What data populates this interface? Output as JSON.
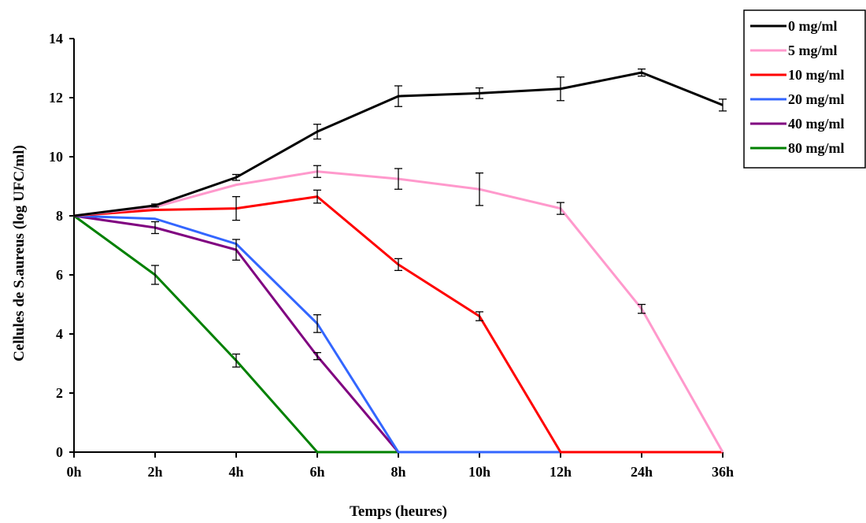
{
  "chart_data": {
    "type": "line",
    "title": "",
    "xlabel": "Temps (heures)",
    "ylabel": "Cellules de S.aureus (log UFC/ml)",
    "categories": [
      "0h",
      "2h",
      "4h",
      "6h",
      "8h",
      "10h",
      "12h",
      "24h",
      "36h"
    ],
    "ylim": [
      0,
      14
    ],
    "yticks": [
      0,
      2,
      4,
      6,
      8,
      10,
      12,
      14
    ],
    "grid": false,
    "legend_position": "top-right",
    "series": [
      {
        "name": "0 mg/ml",
        "color": "#000000",
        "values": [
          8.0,
          8.35,
          9.3,
          10.85,
          12.05,
          12.15,
          12.3,
          12.85,
          11.75
        ],
        "errors": [
          null,
          0.05,
          0.1,
          0.25,
          0.35,
          0.18,
          0.4,
          0.12,
          0.2
        ]
      },
      {
        "name": "5 mg/ml",
        "color": "#ff99cc",
        "values": [
          8.0,
          8.3,
          9.05,
          9.5,
          9.25,
          8.9,
          8.25,
          4.85,
          0.0
        ],
        "errors": [
          null,
          null,
          null,
          0.2,
          0.35,
          0.55,
          0.2,
          0.15,
          null
        ]
      },
      {
        "name": "10 mg/ml",
        "color": "#ff0000",
        "values": [
          8.0,
          8.2,
          8.25,
          8.65,
          6.35,
          4.6,
          0.0,
          0.0,
          0.0
        ],
        "errors": [
          null,
          null,
          0.4,
          0.22,
          0.2,
          0.15,
          null,
          null,
          null
        ]
      },
      {
        "name": "20 mg/ml",
        "color": "#3366ff",
        "values": [
          8.0,
          7.9,
          7.05,
          4.35,
          0.0,
          0.0,
          0.0,
          0.0,
          0.0
        ],
        "errors": [
          null,
          null,
          null,
          0.3,
          null,
          null,
          null,
          null,
          null
        ]
      },
      {
        "name": "40 mg/ml",
        "color": "#800080",
        "values": [
          8.0,
          7.6,
          6.85,
          3.25,
          0.0,
          0.0,
          0.0,
          0.0,
          0.0
        ],
        "errors": [
          null,
          0.2,
          0.35,
          0.12,
          null,
          null,
          null,
          null,
          null
        ]
      },
      {
        "name": "80 mg/ml",
        "color": "#008000",
        "values": [
          8.0,
          6.0,
          3.1,
          0.0,
          0.0,
          0.0,
          0.0,
          0.0,
          0.0
        ],
        "errors": [
          null,
          0.32,
          0.22,
          null,
          null,
          null,
          null,
          null,
          null
        ]
      }
    ]
  }
}
